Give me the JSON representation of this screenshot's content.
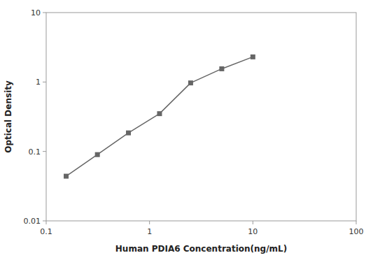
{
  "chart_data": {
    "type": "line",
    "x": [
      0.156,
      0.313,
      0.625,
      1.25,
      2.5,
      5.0,
      10.0
    ],
    "values": [
      0.044,
      0.09,
      0.185,
      0.35,
      0.97,
      1.55,
      2.3
    ],
    "color": "#666666",
    "marker": "square",
    "xlabel": "Human PDIA6 Concentration(ng/mL)",
    "ylabel": "Optical Density",
    "xlim": [
      0.1,
      100
    ],
    "ylim": [
      0.01,
      10
    ],
    "xticks": [
      0.1,
      1,
      10,
      100
    ],
    "yticks": [
      0.01,
      0.1,
      1,
      10
    ],
    "log": true,
    "grid": false
  }
}
